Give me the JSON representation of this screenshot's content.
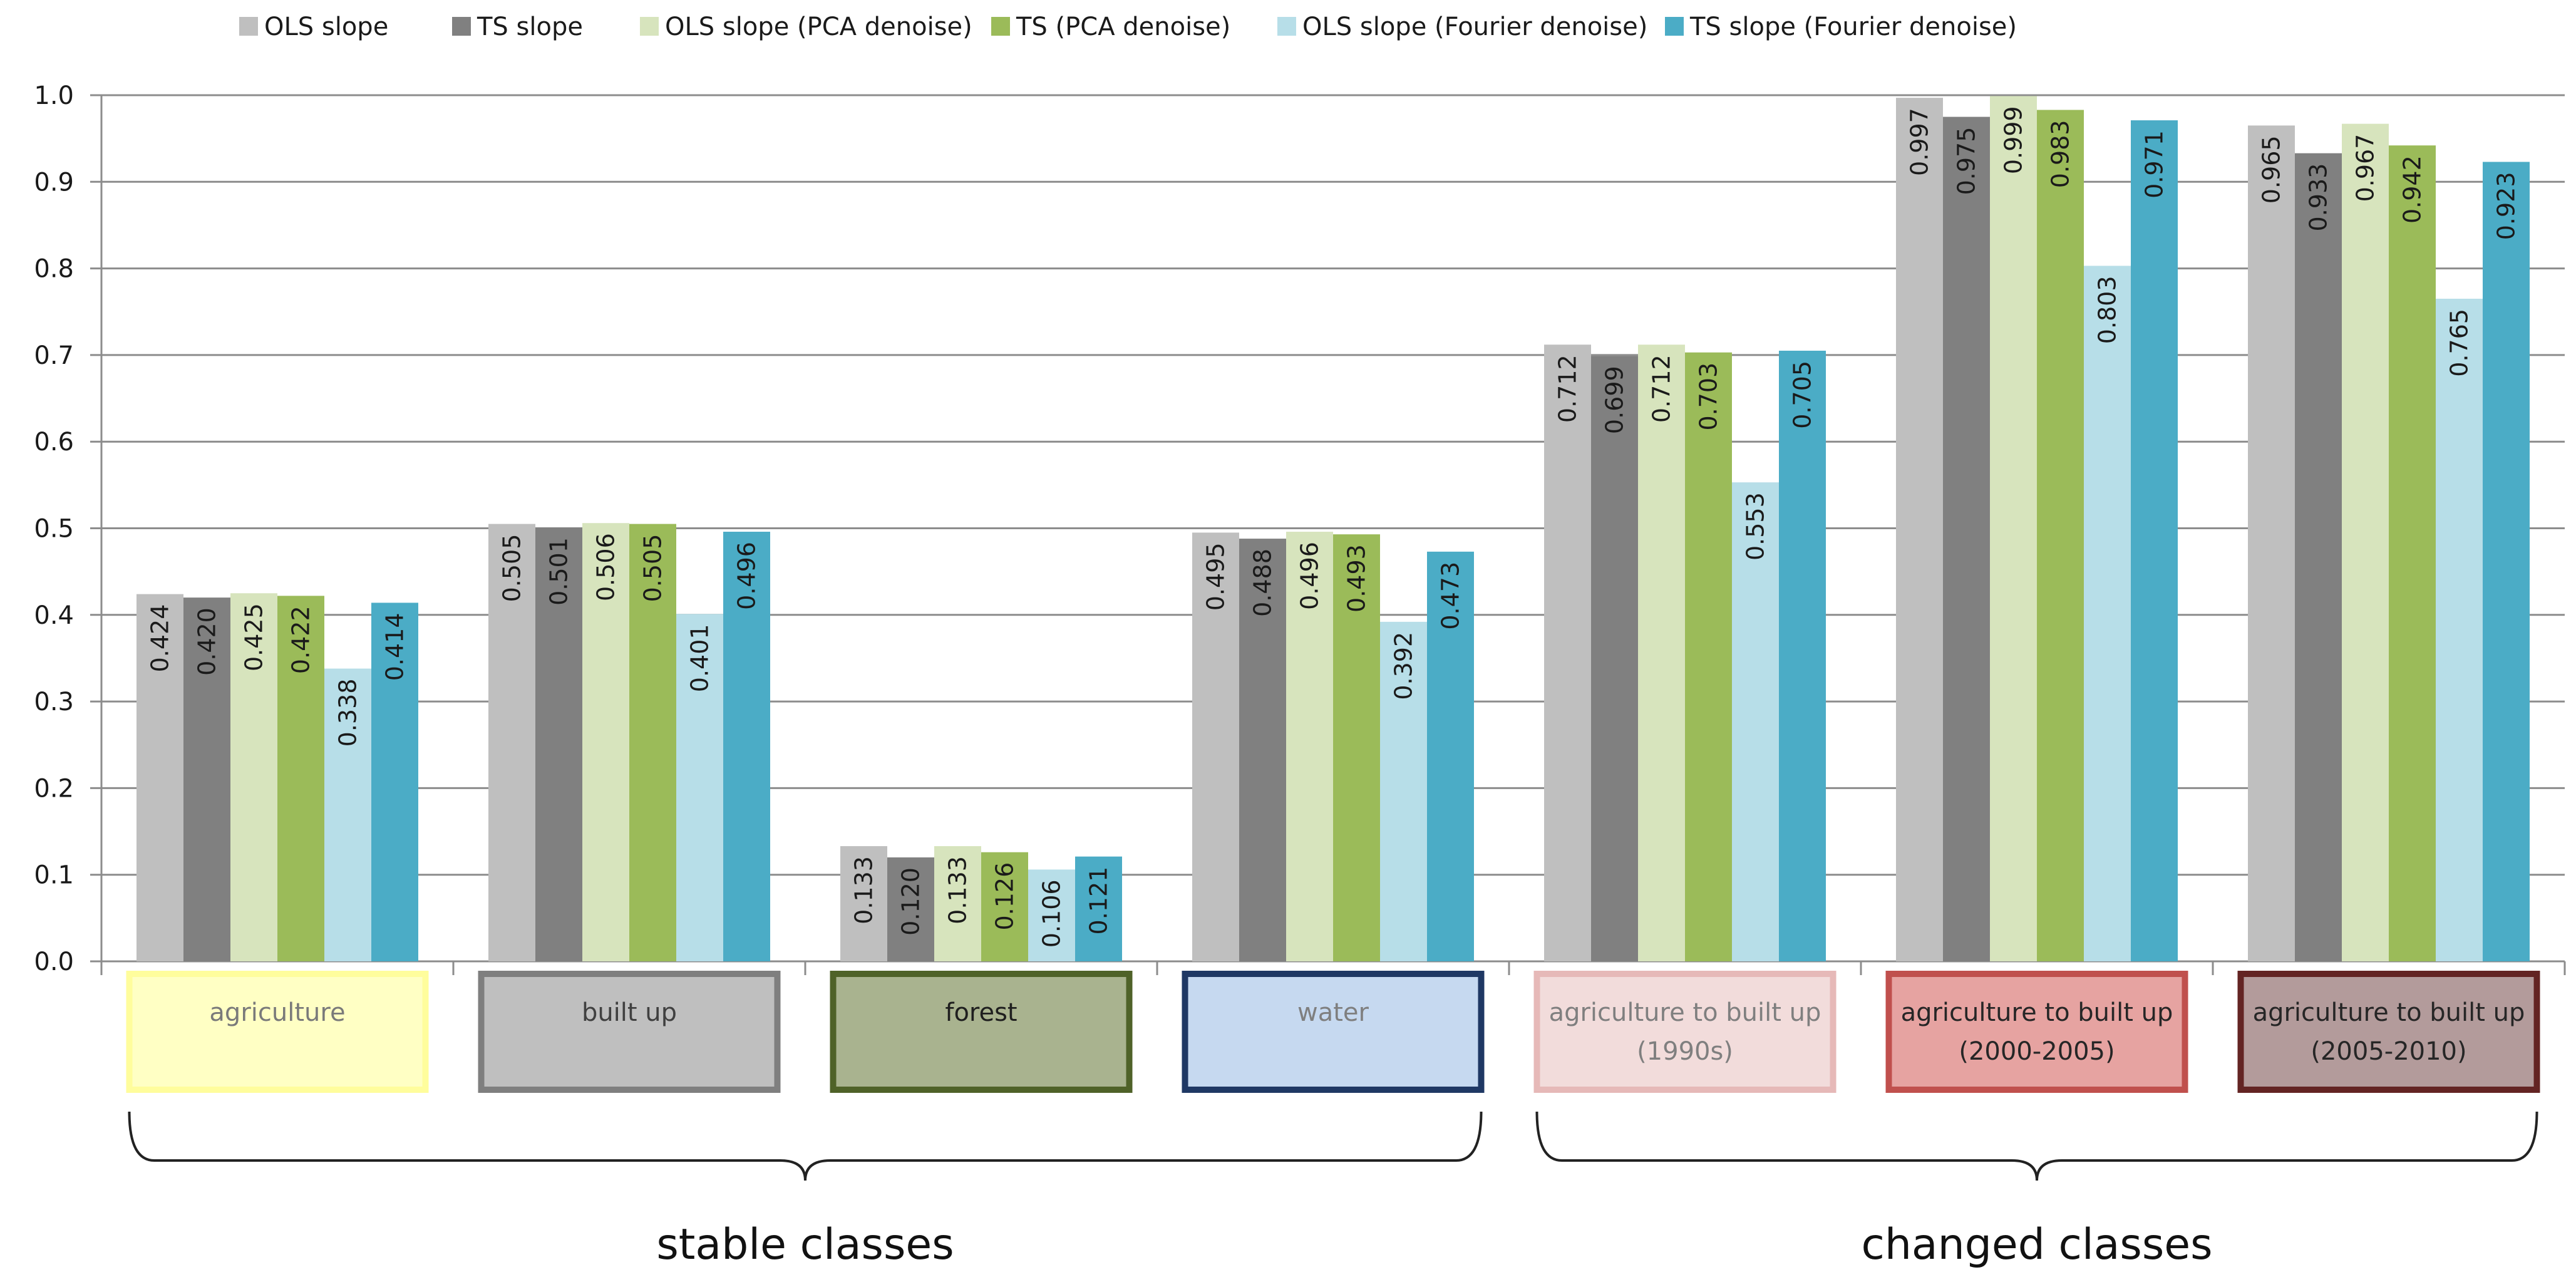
{
  "chart_data": {
    "type": "bar",
    "title": "",
    "xlabel": "",
    "ylabel": "",
    "ylim": [
      0,
      1.0
    ],
    "yticks": [
      "0.0",
      "0.1",
      "0.2",
      "0.3",
      "0.4",
      "0.5",
      "0.6",
      "0.7",
      "0.8",
      "0.9",
      "1.0"
    ],
    "grid": true,
    "legend_position": "top",
    "categories": [
      "agriculture",
      "built up",
      "forest",
      "water",
      "agriculture to built up (1990s)",
      "agriculture to built up (2000-2005)",
      "agriculture to built up (2005-2010)"
    ],
    "category_boxes": [
      {
        "lines": [
          "agriculture"
        ],
        "fill": "#ffffc4",
        "border": "#fffd9c",
        "text_color": "#7a7a7a"
      },
      {
        "lines": [
          "built up"
        ],
        "fill": "#bfbfbf",
        "border": "#7f7f7f",
        "text_color": "#404040"
      },
      {
        "lines": [
          "forest"
        ],
        "fill": "#a9b38f",
        "border": "#4f6228",
        "text_color": "#1f1f1f"
      },
      {
        "lines": [
          "water"
        ],
        "fill": "#c6d9f0",
        "border": "#1f3864",
        "text_color": "#7f7f7f"
      },
      {
        "lines": [
          "agriculture to built up",
          "(1990s)"
        ],
        "fill": "#f2dcdb",
        "border": "#e6b9b8",
        "text_color": "#7f7f7f"
      },
      {
        "lines": [
          "agriculture to built up",
          "(2000-2005)"
        ],
        "fill": "#e6a3a1",
        "border": "#c0504d",
        "text_color": "#262626"
      },
      {
        "lines": [
          "agriculture to built up",
          "(2005-2010)"
        ],
        "fill": "#b39b9b",
        "border": "#632423",
        "text_color": "#262626"
      }
    ],
    "groups": [
      {
        "label": "stable classes",
        "categories": [
          0,
          1,
          2,
          3
        ]
      },
      {
        "label": "changed classes",
        "categories": [
          4,
          5,
          6
        ]
      }
    ],
    "series": [
      {
        "name": "OLS slope",
        "color": "#bfbfbf",
        "values": [
          0.424,
          0.505,
          0.133,
          0.495,
          0.712,
          0.997,
          0.965
        ],
        "labels": [
          "0.424",
          "0.505",
          "0.133",
          "0.495",
          "0.712",
          "0.997",
          "0.965"
        ]
      },
      {
        "name": "TS slope",
        "color": "#808080",
        "values": [
          0.42,
          0.501,
          0.12,
          0.488,
          0.699,
          0.975,
          0.933
        ],
        "labels": [
          "0.420",
          "0.501",
          "0.120",
          "0.488",
          "0.699",
          "0.975",
          "0.933"
        ]
      },
      {
        "name": "OLS slope (PCA denoise)",
        "color": "#d7e4bd",
        "values": [
          0.425,
          0.506,
          0.133,
          0.496,
          0.712,
          0.999,
          0.967
        ],
        "labels": [
          "0.425",
          "0.506",
          "0.133",
          "0.496",
          "0.712",
          "0.999",
          "0.967"
        ]
      },
      {
        "name": "TS (PCA denoise)",
        "color": "#9bbb59",
        "values": [
          0.422,
          0.505,
          0.126,
          0.493,
          0.703,
          0.983,
          0.942
        ],
        "labels": [
          "0.422",
          "0.505",
          "0.126",
          "0.493",
          "0.703",
          "0.983",
          "0.942"
        ]
      },
      {
        "name": "OLS slope (Fourier denoise)",
        "color": "#b7dee8",
        "values": [
          0.338,
          0.401,
          0.106,
          0.392,
          0.553,
          0.803,
          0.765
        ],
        "labels": [
          "0.338",
          "0.401",
          "0.106",
          "0.392",
          "0.553",
          "0.803",
          "0.765"
        ]
      },
      {
        "name": "TS slope (Fourier denoise)",
        "color": "#4bacc6",
        "values": [
          0.414,
          0.496,
          0.121,
          0.473,
          0.705,
          0.971,
          0.923
        ],
        "labels": [
          "0.414",
          "0.496",
          "0.121",
          "0.473",
          "0.705",
          "0.971",
          "0.923"
        ]
      }
    ]
  }
}
